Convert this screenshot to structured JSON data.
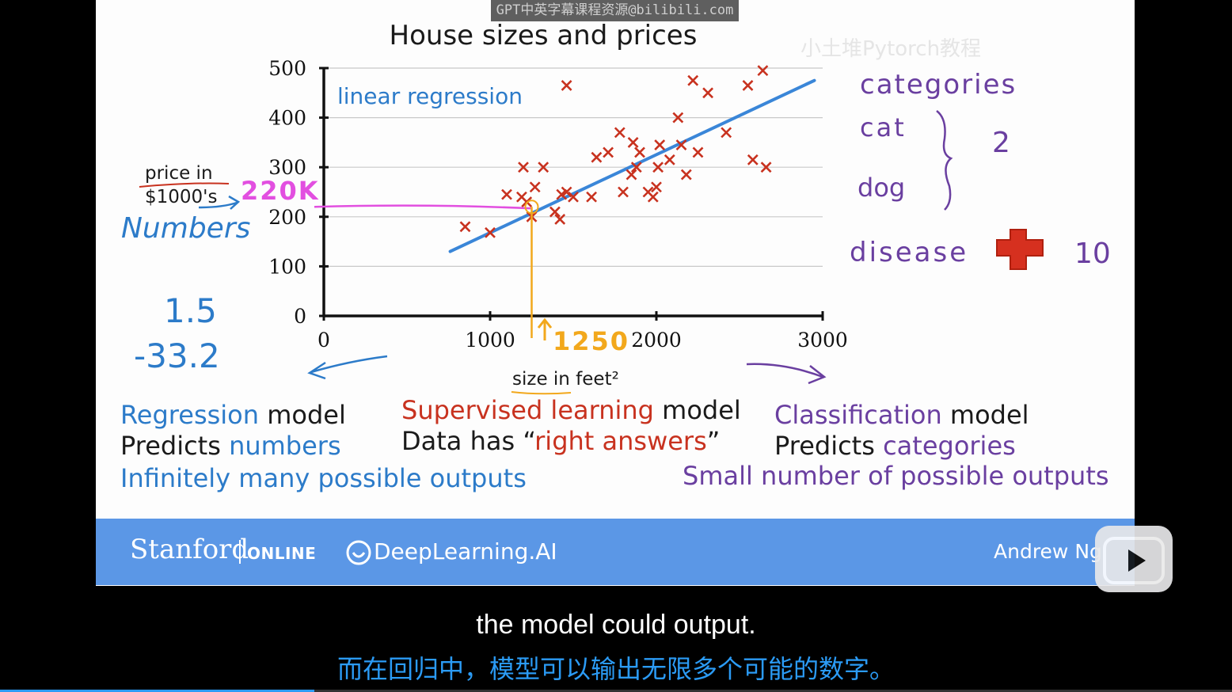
{
  "watermark": {
    "top_text": "GPT中英字幕课程资源@bilibili.com",
    "corner_text": "小土堆Pytorch教程"
  },
  "chart_data": {
    "type": "scatter",
    "title": "House sizes and prices",
    "xlabel": "size in feet²",
    "ylabel": "price in $1000's",
    "xlim": [
      0,
      3000
    ],
    "ylim": [
      0,
      500
    ],
    "xticks": [
      "0",
      "1000",
      "2000",
      "3000"
    ],
    "yticks": [
      "0",
      "100",
      "200",
      "300",
      "400",
      "500"
    ],
    "grid": "horizontal",
    "points": [
      {
        "x": 850,
        "y": 180
      },
      {
        "x": 1000,
        "y": 168
      },
      {
        "x": 1100,
        "y": 245
      },
      {
        "x": 1200,
        "y": 300
      },
      {
        "x": 1190,
        "y": 240
      },
      {
        "x": 1220,
        "y": 230
      },
      {
        "x": 1250,
        "y": 200
      },
      {
        "x": 1270,
        "y": 260
      },
      {
        "x": 1320,
        "y": 300
      },
      {
        "x": 1390,
        "y": 210
      },
      {
        "x": 1420,
        "y": 195
      },
      {
        "x": 1430,
        "y": 245
      },
      {
        "x": 1460,
        "y": 250
      },
      {
        "x": 1500,
        "y": 240
      },
      {
        "x": 1460,
        "y": 465
      },
      {
        "x": 1610,
        "y": 240
      },
      {
        "x": 1640,
        "y": 320
      },
      {
        "x": 1710,
        "y": 330
      },
      {
        "x": 1780,
        "y": 370
      },
      {
        "x": 1800,
        "y": 250
      },
      {
        "x": 1850,
        "y": 285
      },
      {
        "x": 1860,
        "y": 350
      },
      {
        "x": 1880,
        "y": 300
      },
      {
        "x": 1900,
        "y": 330
      },
      {
        "x": 1950,
        "y": 250
      },
      {
        "x": 1980,
        "y": 240
      },
      {
        "x": 2000,
        "y": 260
      },
      {
        "x": 2010,
        "y": 300
      },
      {
        "x": 2020,
        "y": 345
      },
      {
        "x": 2080,
        "y": 315
      },
      {
        "x": 2130,
        "y": 400
      },
      {
        "x": 2150,
        "y": 345
      },
      {
        "x": 2180,
        "y": 285
      },
      {
        "x": 2220,
        "y": 475
      },
      {
        "x": 2250,
        "y": 330
      },
      {
        "x": 2310,
        "y": 450
      },
      {
        "x": 2420,
        "y": 370
      },
      {
        "x": 2550,
        "y": 465
      },
      {
        "x": 2580,
        "y": 315
      },
      {
        "x": 2640,
        "y": 495
      },
      {
        "x": 2660,
        "y": 300
      }
    ],
    "regression_line": {
      "x1": 760,
      "y1": 130,
      "x2": 2950,
      "y2": 475,
      "label": "linear regression"
    },
    "annotation_x": {
      "x": 1250,
      "label": "1250"
    },
    "annotation_y": {
      "y": 220,
      "label": "220K"
    }
  },
  "handwriting": {
    "numbers_label": "Numbers",
    "num_a": "1.5",
    "num_b": "-33.2",
    "categories_title": "categories",
    "cat": "cat",
    "dog": "dog",
    "two": "2",
    "disease": "disease",
    "ten": "10"
  },
  "left_text": {
    "regression": "Regression",
    "model": "model",
    "predicts": "Predicts",
    "numbers": "numbers",
    "infinitely": "Infinitely many possible outputs"
  },
  "center_text": {
    "supervised": "Supervised learning",
    "model": "model",
    "data_has": "Data has “",
    "right_answers": "right answers",
    "close_quote": "”"
  },
  "right_text": {
    "classification": "Classification",
    "model": "model",
    "predicts": "Predicts",
    "categories": "categories",
    "small": "Small number of possible outputs"
  },
  "banner": {
    "stanford": "Stanford",
    "online": "ONLINE",
    "deeplearning": "DeepLearning.AI",
    "author": "Andrew Ng"
  },
  "subtitles": {
    "english": "the model could output.",
    "chinese": "而在回归中，模型可以输出无限多个可能的数字。"
  },
  "playback": {
    "progress": 0.255
  },
  "colors": {
    "regression_blue": "#2c7bc9",
    "supervised_red": "#c8321f",
    "classification_purple": "#6a3fa0",
    "banner_blue": "#5b97e6",
    "marker_red": "#c8321f",
    "annotation_pink": "#e24fe0",
    "annotation_orange": "#f2a81c",
    "subtitle_blue": "#2b9bf5"
  }
}
